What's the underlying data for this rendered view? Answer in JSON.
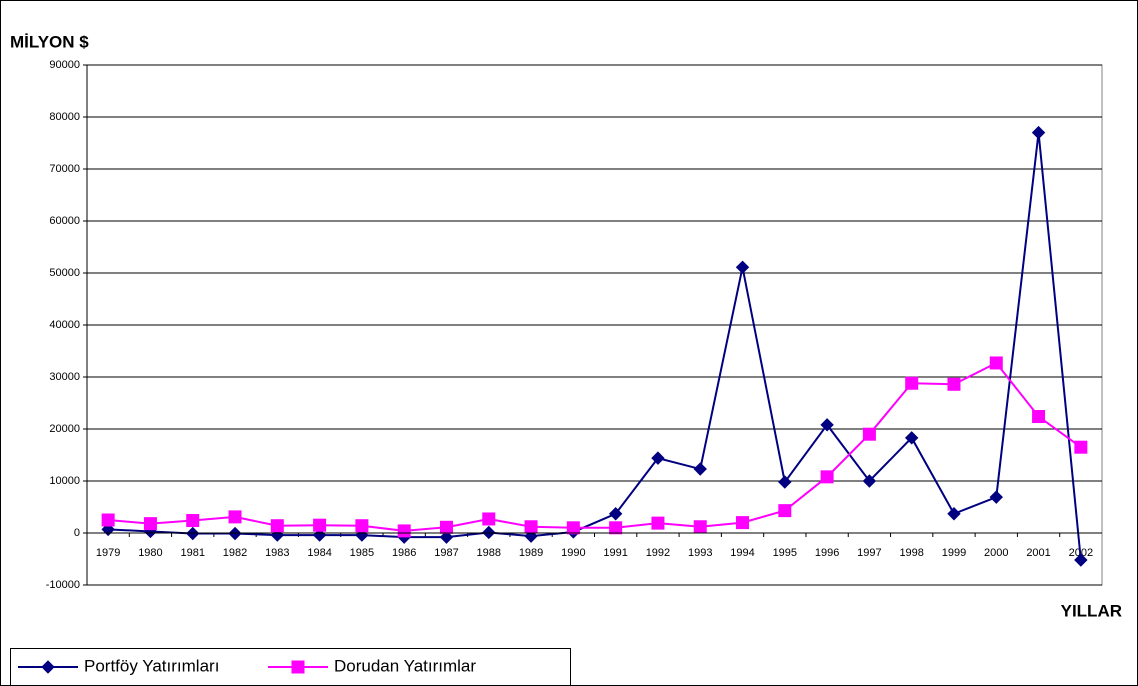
{
  "chart_data": {
    "type": "line",
    "title": "MİLYON $",
    "x_label": "YILLAR",
    "categories": [
      "1979",
      "1980",
      "1981",
      "1982",
      "1983",
      "1984",
      "1985",
      "1986",
      "1987",
      "1988",
      "1989",
      "1990",
      "1991",
      "1992",
      "1993",
      "1994",
      "1995",
      "1996",
      "1997",
      "1998",
      "1999",
      "2000",
      "2001",
      "2002"
    ],
    "series": [
      {
        "name": "Portföy Yatırımları",
        "color": "#000080",
        "marker": "diamond",
        "values": [
          700,
          300,
          -100,
          -100,
          -400,
          -400,
          -400,
          -800,
          -800,
          100,
          -600,
          200,
          3700,
          14400,
          12300,
          51100,
          9800,
          20800,
          10000,
          18300,
          3700,
          6900,
          77000,
          -5200
        ]
      },
      {
        "name": "Dorudan Yatırımlar",
        "color": "#ff00ff",
        "marker": "square",
        "values": [
          2500,
          1800,
          2400,
          3100,
          1400,
          1500,
          1400,
          400,
          1100,
          2700,
          1200,
          1000,
          1000,
          1900,
          1200,
          2000,
          4300,
          10800,
          19000,
          28800,
          28600,
          32700,
          22400,
          16500
        ]
      }
    ],
    "ylim": [
      -10000,
      90000
    ],
    "yticks": [
      -10000,
      0,
      10000,
      20000,
      30000,
      40000,
      50000,
      60000,
      70000,
      80000,
      90000
    ],
    "grid": true,
    "legend": "bottom-left"
  }
}
